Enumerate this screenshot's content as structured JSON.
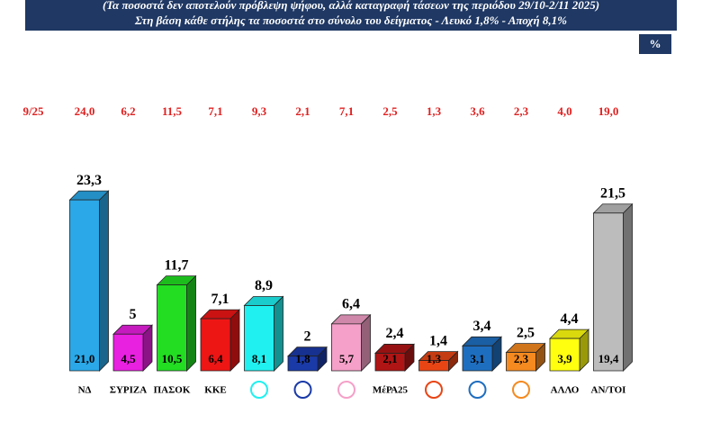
{
  "header": {
    "line1": "(Τα ποσοστά δεν αποτελούν πρόβλεψη ψήφου, αλλά καταγραφή τάσεων της περιόδου  29/10-2/11 2025)",
    "line2": "Στη βάση κάθε στήλης τα ποσοστά στο σύνολο του δείγματος - Λευκό 1,8% - Αποχή 8,1%"
  },
  "chart_data": {
    "type": "bar3d",
    "unit": "%",
    "categories": [
      "ΝΔ",
      "ΣΥΡΙΖΑ",
      "ΠΑΣΟΚ",
      "ΚΚΕ",
      null,
      null,
      null,
      "ΜέΡΑ25",
      null,
      null,
      null,
      "ΑΛΛΟ",
      "ΑΝ/ΤΟΙ"
    ],
    "values": [
      23.3,
      5,
      11.7,
      7.1,
      8.9,
      2,
      6.4,
      2.4,
      1.4,
      3.4,
      2.5,
      4.4,
      21.5
    ],
    "value_labels": [
      "23,3",
      "5",
      "11,7",
      "7,1",
      "8,9",
      "2",
      "6,4",
      "2,4",
      "1,4",
      "3,4",
      "2,5",
      "4,4",
      "21,5"
    ],
    "base_values": [
      21.0,
      4.5,
      10.5,
      6.4,
      8.1,
      1.8,
      5.7,
      2.1,
      1.3,
      3.1,
      2.3,
      3.9,
      19.4
    ],
    "base_value_labels": [
      "21,0",
      "4,5",
      "10,5",
      "6,4",
      "8,1",
      "1,8",
      "5,7",
      "2,1",
      "1,3",
      "3,1",
      "2,3",
      "3,9",
      "19,4"
    ],
    "previous_label": "9/25",
    "previous_values": [
      24.0,
      6.2,
      11.5,
      7.1,
      9.3,
      2.1,
      7.1,
      2.5,
      1.3,
      3.6,
      2.3,
      4.0,
      19.0
    ],
    "previous_value_labels": [
      "24,0",
      "6,2",
      "11,5",
      "7,1",
      "9,3",
      "2,1",
      "7,1",
      "2,5",
      "1,3",
      "3,6",
      "2,3",
      "4,0",
      "19,0"
    ],
    "colors": [
      "#2aa8e8",
      "#e820e0",
      "#22dd22",
      "#ee1515",
      "#20f0f0",
      "#1a3aa8",
      "#f5a0c8",
      "#b01515",
      "#e84515",
      "#1e6ec0",
      "#f58a20",
      "#ffff10",
      "#bcbcbc"
    ]
  }
}
